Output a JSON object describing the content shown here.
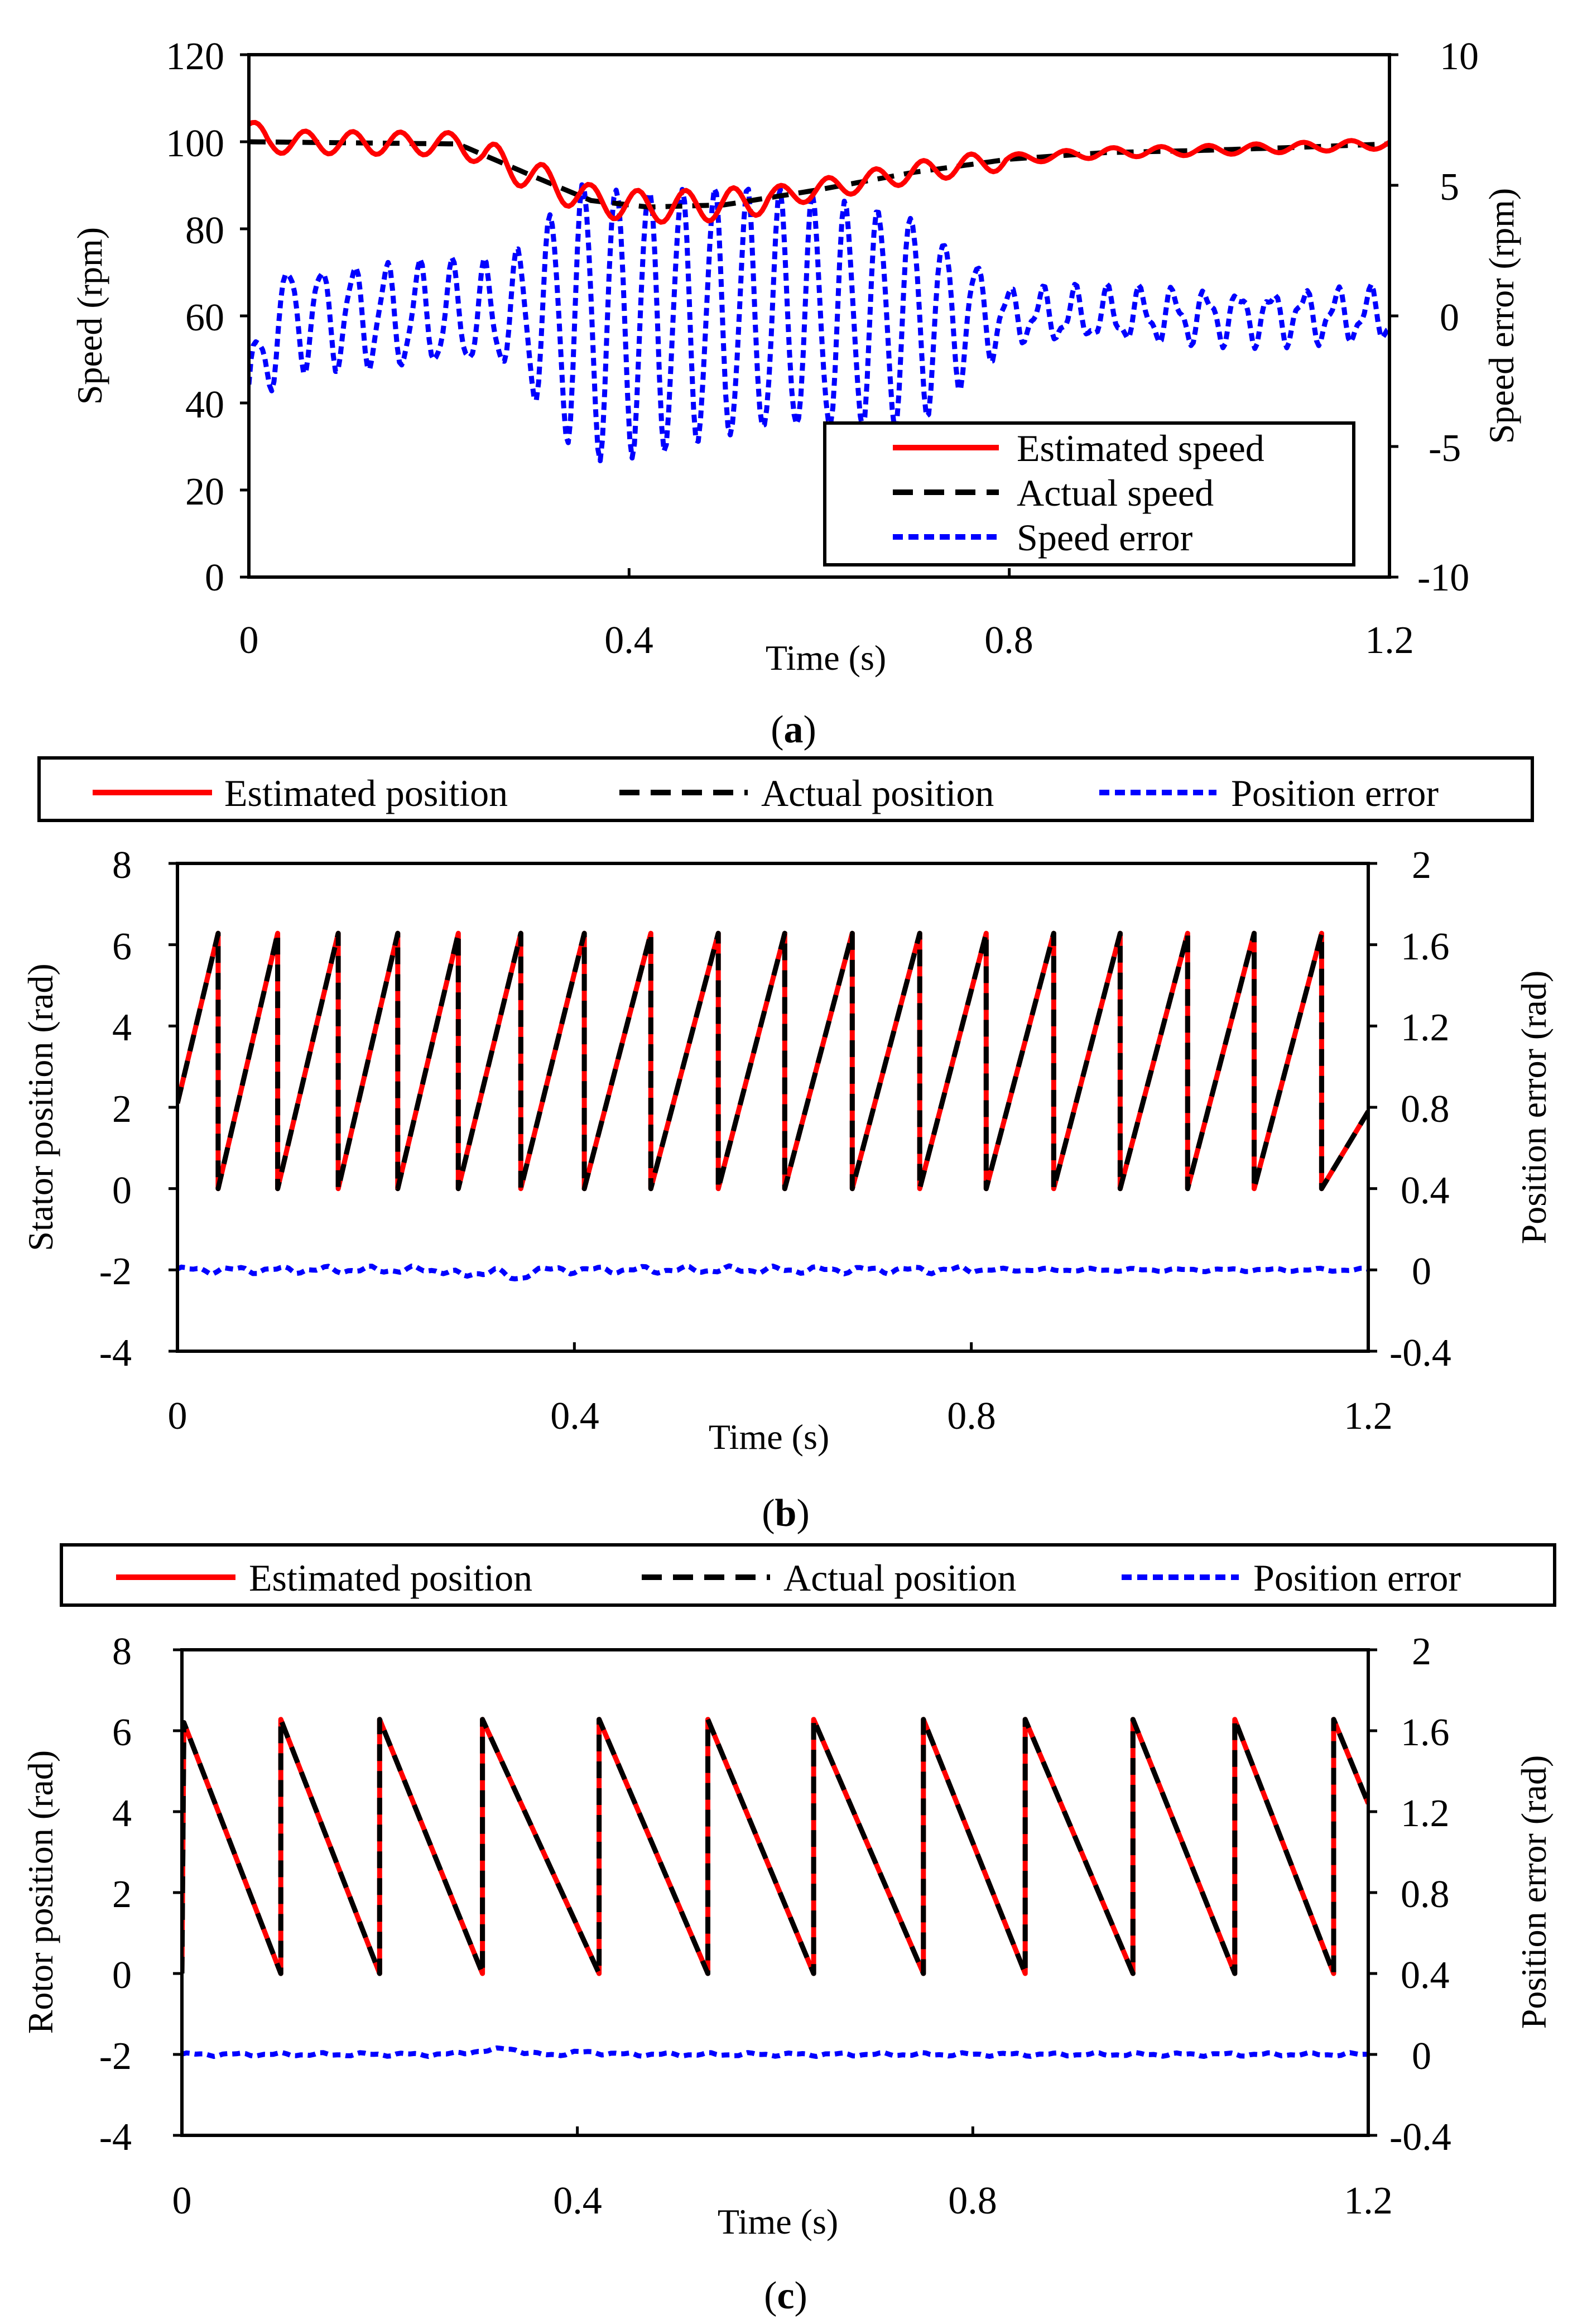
{
  "chart_data": [
    {
      "id": "a",
      "type": "line",
      "caption": "a",
      "xlabel": "Time (s)",
      "ylabel": "Speed  (rpm)",
      "y2label": "Speed error (rpm)",
      "xlim": [
        0,
        1.2
      ],
      "ylim": [
        0,
        120
      ],
      "y2lim": [
        -10,
        10
      ],
      "xticks": [
        0,
        0.4,
        0.8,
        1.2
      ],
      "xtick_labels": [
        "0",
        "0.4",
        "0.8",
        "1.2"
      ],
      "yticks": [
        0,
        20,
        40,
        60,
        80,
        100,
        120
      ],
      "ytick_labels": [
        "0",
        "20",
        "40",
        "60",
        "80",
        "100",
        "120"
      ],
      "y2ticks": [
        -10,
        -5,
        0,
        5,
        10
      ],
      "y2tick_labels": [
        "-10",
        "-5",
        "0",
        "5",
        "10"
      ],
      "legend_position": "bottom-right inside",
      "series": [
        {
          "name": "Estimated speed",
          "axis": "left",
          "color": "#ff0000",
          "dash": "solid",
          "model": {
            "kind": "speed_est",
            "n": 360
          }
        },
        {
          "name": "Actual speed",
          "axis": "left",
          "color": "#000000",
          "dash": "dash",
          "keypoints": {
            "x": [
              0,
              0.22,
              0.3,
              0.36,
              0.42,
              0.5,
              0.6,
              0.7,
              0.8,
              0.9,
              1.0,
              1.1,
              1.2
            ],
            "y": [
              100,
              99.5,
              92,
              86.5,
              85,
              85.5,
              89,
              93,
              96,
              97.5,
              98,
              98.7,
              99.5
            ]
          }
        },
        {
          "name": "Speed error",
          "axis": "right",
          "color": "#0000ff",
          "dash": "shortdash",
          "model": {
            "kind": "speed_err",
            "n": 500
          }
        }
      ]
    },
    {
      "id": "b",
      "type": "line",
      "caption": "b",
      "xlabel": "Time (s)",
      "ylabel": "Stator position (rad)",
      "y2label": "Position error (rad)",
      "xlim": [
        0,
        1.2
      ],
      "ylim": [
        -4,
        8
      ],
      "y2lim": [
        -0.4,
        2
      ],
      "xticks": [
        0,
        0.4,
        0.8,
        1.2
      ],
      "xtick_labels": [
        "0",
        "0.4",
        "0.8",
        "1.2"
      ],
      "yticks": [
        -4,
        -2,
        0,
        2,
        4,
        6,
        8
      ],
      "ytick_labels": [
        "-4",
        "-2",
        "0",
        "2",
        "4",
        "6",
        "8"
      ],
      "y2ticks": [
        -0.4,
        0,
        0.4,
        0.8,
        1.2,
        1.6,
        2
      ],
      "y2tick_labels": [
        "-0.4",
        "0",
        "0.4",
        "0.8",
        "1.2",
        "1.6",
        "2"
      ],
      "legend_position": "top, outside",
      "sawtooth": {
        "direction": "rising",
        "start_value": 2.1,
        "max": 6.28,
        "wrap_times": [
          0.041,
          0.101,
          0.162,
          0.222,
          0.283,
          0.346,
          0.41,
          0.477,
          0.545,
          0.612,
          0.68,
          0.748,
          0.815,
          0.883,
          0.95,
          1.018,
          1.085,
          1.153
        ],
        "end_value": 1.9
      },
      "series": [
        {
          "name": "Estimated position",
          "axis": "left",
          "color": "#ff0000",
          "dash": "solid"
        },
        {
          "name": "Actual position",
          "axis": "left",
          "color": "#000000",
          "dash": "dash"
        },
        {
          "name": "Position error",
          "axis": "right",
          "color": "#0000ff",
          "dash": "shortdash",
          "model": {
            "kind": "pos_err_b",
            "n": 300
          }
        }
      ]
    },
    {
      "id": "c",
      "type": "line",
      "caption": "c",
      "xlabel": "Time (s)",
      "ylabel": "Rotor position (rad)",
      "y2label": "Position error (rad)",
      "xlim": [
        0,
        1.2
      ],
      "ylim": [
        -4,
        8
      ],
      "y2lim": [
        -0.4,
        2
      ],
      "xticks": [
        0,
        0.4,
        0.8,
        1.2
      ],
      "xtick_labels": [
        "0",
        "0.4",
        "0.8",
        "1.2"
      ],
      "yticks": [
        -4,
        -2,
        0,
        2,
        4,
        6,
        8
      ],
      "ytick_labels": [
        "-4",
        "-2",
        "0",
        "2",
        "4",
        "6",
        "8"
      ],
      "y2ticks": [
        -0.4,
        0,
        0.4,
        0.8,
        1.2,
        1.6,
        2
      ],
      "y2tick_labels": [
        "-0.4",
        "0",
        "0.4",
        "0.8",
        "1.2",
        "1.6",
        "2"
      ],
      "legend_position": "top, outside",
      "sawtooth": {
        "direction": "falling",
        "start_value": 6.2,
        "max": 6.28,
        "wrap_times": [
          0.1,
          0.2,
          0.304,
          0.422,
          0.532,
          0.639,
          0.75,
          0.853,
          0.962,
          1.065,
          1.165
        ],
        "end_value": 4.2
      },
      "series": [
        {
          "name": "Estimated position",
          "axis": "left",
          "color": "#ff0000",
          "dash": "solid"
        },
        {
          "name": "Actual position",
          "axis": "left",
          "color": "#000000",
          "dash": "dash"
        },
        {
          "name": "Position error",
          "axis": "right",
          "color": "#0000ff",
          "dash": "shortdash",
          "model": {
            "kind": "pos_err_c",
            "n": 260
          }
        }
      ]
    }
  ]
}
